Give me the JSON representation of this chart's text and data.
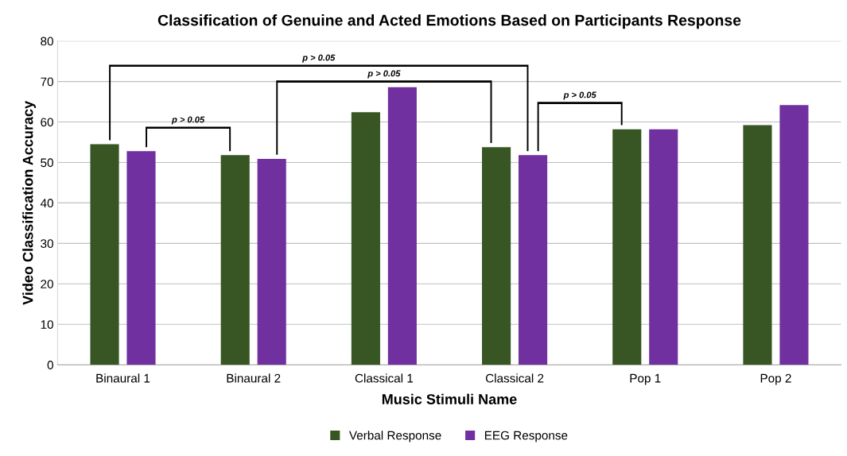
{
  "chart_data": {
    "type": "bar",
    "title": "Classification of Genuine and Acted Emotions Based on Participants Response",
    "xlabel": "Music Stimuli Name",
    "ylabel": "Video Classification Accuracy",
    "categories": [
      "Binaural 1",
      "Binaural 2",
      "Classical 1",
      "Classical 2",
      "Pop 1",
      "Pop 2"
    ],
    "series": [
      {
        "name": "Verbal Response",
        "color": "#375623",
        "values": [
          54.5,
          51.8,
          62.4,
          53.8,
          58.2,
          59.2
        ]
      },
      {
        "name": "EEG Response",
        "color": "#7030a0",
        "values": [
          52.8,
          50.9,
          68.6,
          51.8,
          58.2,
          64.2
        ]
      }
    ],
    "ylim": [
      0,
      80
    ],
    "yticks": [
      0,
      10,
      20,
      30,
      40,
      50,
      60,
      70,
      80
    ],
    "grid": "y",
    "legend": "bottom",
    "annotations": [
      "p > 0.05",
      "p > 0.05",
      "p > 0.05",
      "p > 0.05"
    ]
  }
}
